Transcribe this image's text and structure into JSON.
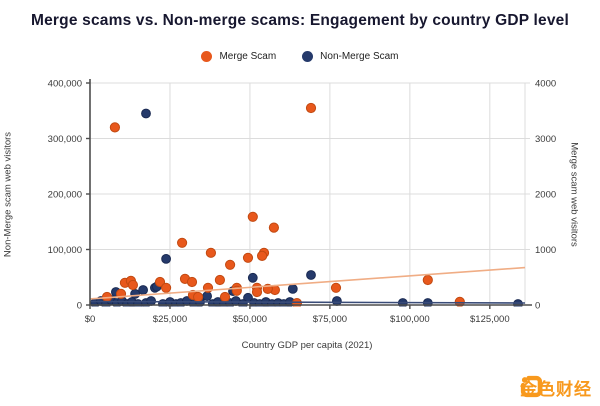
{
  "title": "Merge scams vs. Non-merge scams: Engagement by country GDP level",
  "legend": {
    "items": [
      {
        "label": "Merge Scam",
        "color": "#e8581c"
      },
      {
        "label": "Non-Merge Scam",
        "color": "#253a6b"
      }
    ]
  },
  "footer": {
    "logo_text": "金色财经"
  },
  "colors": {
    "merge_point": "#e8581c",
    "merge_point_stroke": "#c24a12",
    "nonmerge_point": "#253a6b",
    "nonmerge_point_stroke": "#1a2a52",
    "merge_trend": "#f0ad85",
    "nonmerge_trend": "#3a4c78",
    "grid": "#dcdcdc",
    "axis": "#4d4d4d",
    "tick_text": "#3a3a3a"
  },
  "chart_data": {
    "type": "scatter",
    "title": "Merge scams vs. Non-merge scams: Engagement by country GDP level",
    "xlabel": "Country GDP per capita (2021)",
    "ylabel_left": "Non-Merge scam web visitors",
    "ylabel_right": "Merge scam web visitors",
    "xlim": [
      0,
      136000
    ],
    "ylim_left": [
      0,
      400000
    ],
    "ylim_right": [
      0,
      4000
    ],
    "x_ticks": [
      "$0",
      "$25,000",
      "$50,000",
      "$75,000",
      "$100,000",
      "$125,000"
    ],
    "x_tick_values": [
      0,
      25000,
      50000,
      75000,
      100000,
      125000
    ],
    "y_ticks_left": [
      "400,000",
      "300,000",
      "200,000",
      "100,000",
      "0"
    ],
    "y_tick_values_left": [
      400000,
      300000,
      200000,
      100000,
      0
    ],
    "y_ticks_right": [
      "4000",
      "3000",
      "2000",
      "1000",
      "0"
    ],
    "y_tick_values_right": [
      4000,
      3000,
      2000,
      1000,
      0
    ],
    "grid": true,
    "legend_position": "top",
    "series": [
      {
        "name": "Merge Scam",
        "axis": "right",
        "points": [
          [
            7800,
            3200
          ],
          [
            69100,
            3550
          ],
          [
            50900,
            1590
          ],
          [
            57500,
            1395
          ],
          [
            28800,
            1120
          ],
          [
            37800,
            940
          ],
          [
            54400,
            940
          ],
          [
            49400,
            850
          ],
          [
            53800,
            885
          ],
          [
            43800,
            725
          ],
          [
            105600,
            450
          ],
          [
            76900,
            310
          ],
          [
            40600,
            450
          ],
          [
            45900,
            310
          ],
          [
            52200,
            310
          ],
          [
            57800,
            270
          ],
          [
            36900,
            310
          ],
          [
            115600,
            55
          ],
          [
            29700,
            470
          ],
          [
            31900,
            415
          ],
          [
            10900,
            400
          ],
          [
            12800,
            435
          ],
          [
            13400,
            360
          ],
          [
            9700,
            200
          ],
          [
            21900,
            415
          ],
          [
            23800,
            310
          ],
          [
            5300,
            145
          ],
          [
            42200,
            145
          ],
          [
            64700,
            35
          ],
          [
            32200,
            180
          ],
          [
            33800,
            145
          ],
          [
            45900,
            255
          ],
          [
            55600,
            290
          ],
          [
            52200,
            235
          ]
        ]
      },
      {
        "name": "Non-Merge Scam",
        "axis": "left",
        "points": [
          [
            17500,
            345000
          ],
          [
            23800,
            83000
          ],
          [
            69100,
            54000
          ],
          [
            50900,
            49000
          ],
          [
            63400,
            29000
          ],
          [
            77200,
            7200
          ],
          [
            105600,
            3600
          ],
          [
            133800,
            1800
          ],
          [
            20300,
            31000
          ],
          [
            8100,
            23500
          ],
          [
            14100,
            20000
          ],
          [
            16600,
            27000
          ],
          [
            20900,
            33000
          ],
          [
            49400,
            13000
          ],
          [
            44700,
            25000
          ],
          [
            97800,
            3600
          ],
          [
            1600,
            3600
          ],
          [
            3400,
            7200
          ],
          [
            5000,
            1800
          ],
          [
            6600,
            9000
          ],
          [
            8400,
            3600
          ],
          [
            10000,
            7200
          ],
          [
            11600,
            1800
          ],
          [
            13100,
            5400
          ],
          [
            15000,
            1800
          ],
          [
            17500,
            3600
          ],
          [
            19100,
            7200
          ],
          [
            22800,
            1800
          ],
          [
            25000,
            5400
          ],
          [
            26900,
            1800
          ],
          [
            28400,
            3600
          ],
          [
            30300,
            7200
          ],
          [
            32500,
            1800
          ],
          [
            34400,
            5400
          ],
          [
            36600,
            16000
          ],
          [
            38400,
            1800
          ],
          [
            40000,
            5400
          ],
          [
            41900,
            1800
          ],
          [
            43800,
            3600
          ],
          [
            45600,
            7200
          ],
          [
            47800,
            1800
          ],
          [
            51300,
            3600
          ],
          [
            53100,
            1800
          ],
          [
            55000,
            5400
          ],
          [
            56900,
            1800
          ],
          [
            58800,
            3600
          ],
          [
            60600,
            1800
          ],
          [
            62500,
            5400
          ]
        ]
      }
    ],
    "trendlines": [
      {
        "series": "Merge Scam",
        "axis": "right",
        "points": [
          [
            0,
            110
          ],
          [
            136000,
            675
          ]
        ]
      },
      {
        "series": "Non-Merge Scam",
        "axis": "left",
        "points": [
          [
            0,
            6300
          ],
          [
            136000,
            3600
          ]
        ]
      }
    ]
  }
}
